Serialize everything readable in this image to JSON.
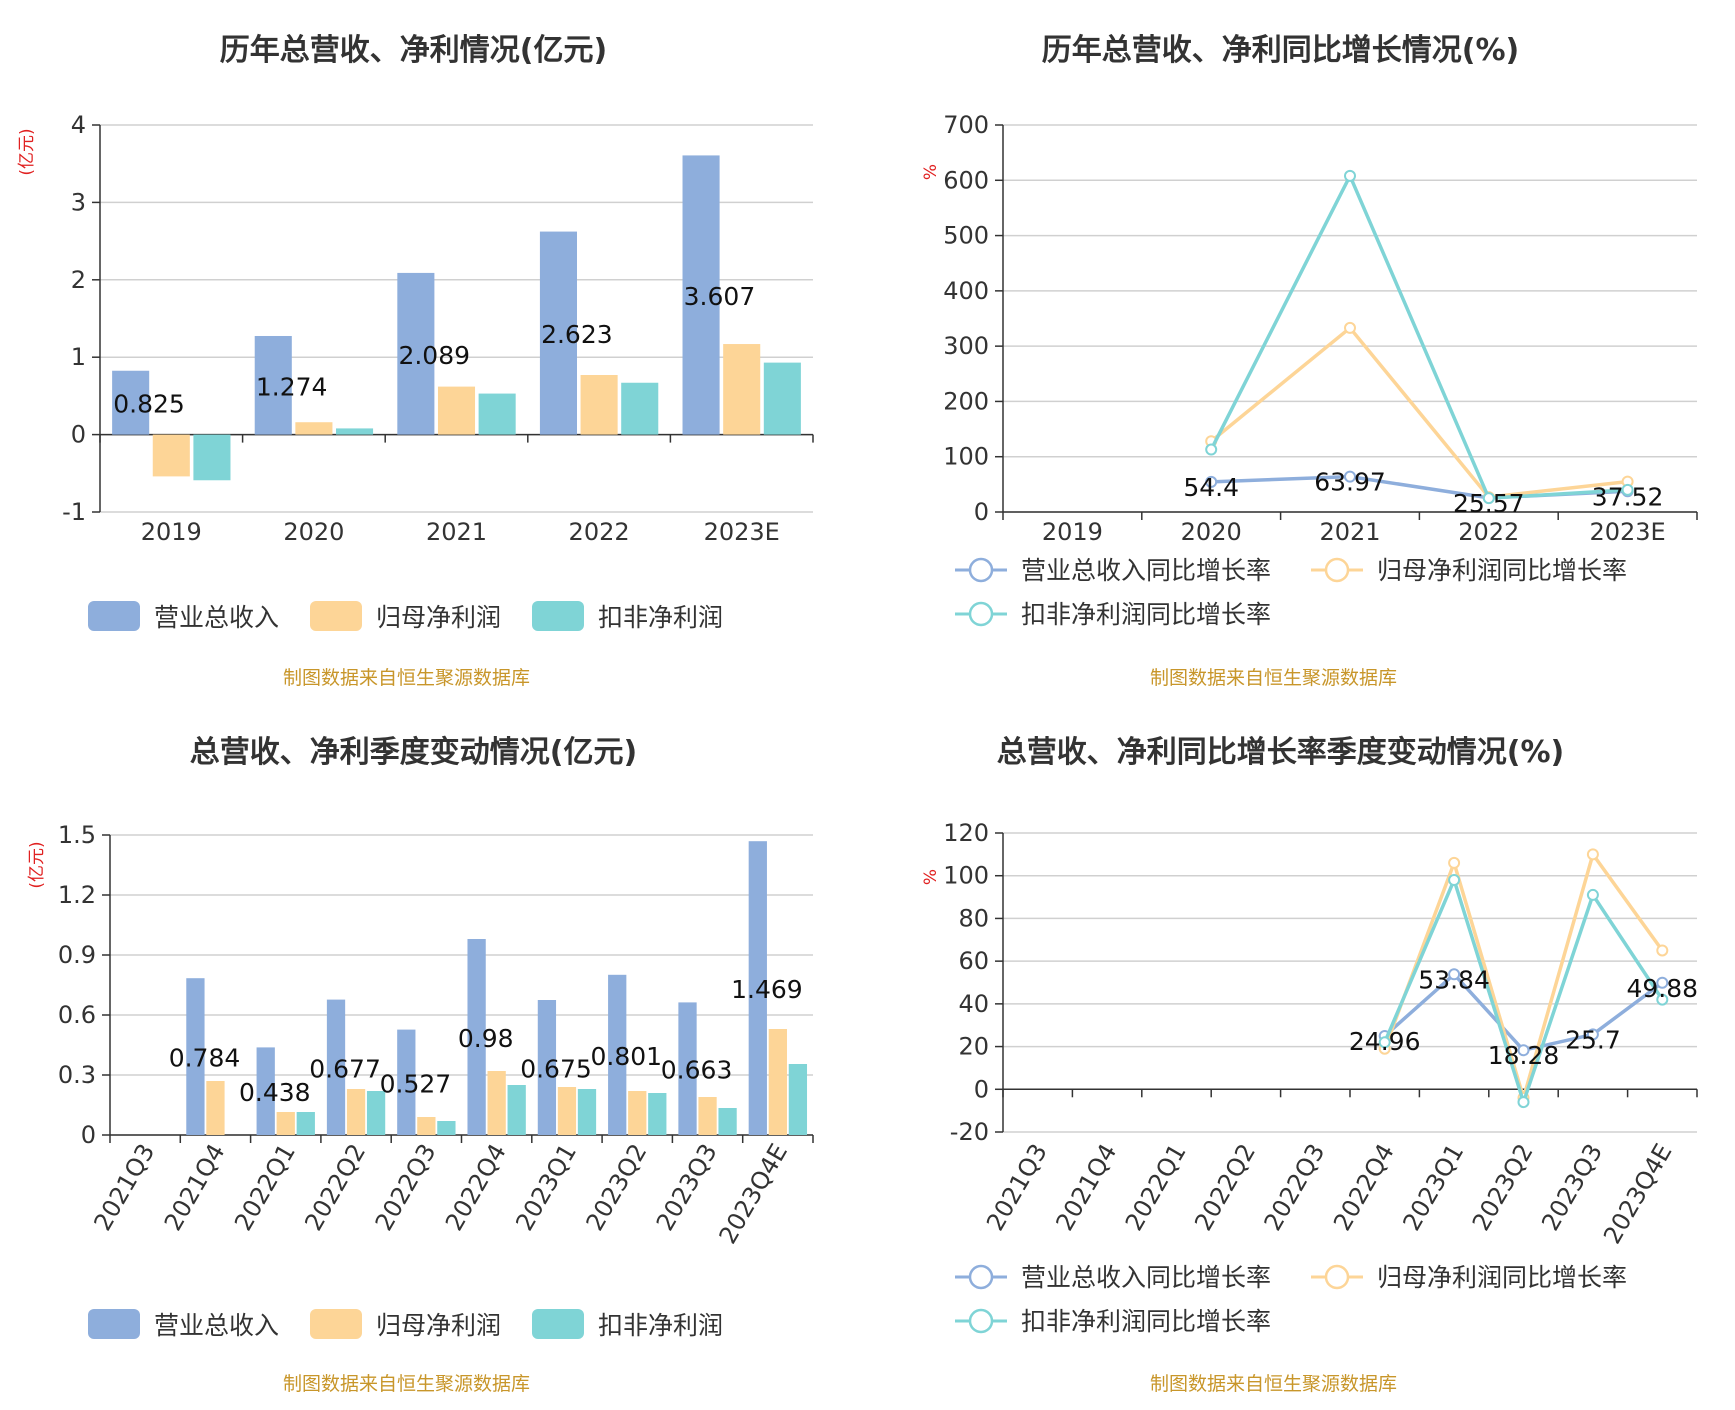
{
  "colors": {
    "revenue": "#8eaedc",
    "net_profit": "#fdd597",
    "deducted_profit": "#7fd4d6",
    "grid": "#d0d0d0",
    "axis": "#333333",
    "source": "#c8962a",
    "unit": "#e02020"
  },
  "chart_data": [
    {
      "type": "bar",
      "title": "历年总营收、净利情况(亿元)",
      "unit": "(亿元)",
      "categories": [
        "2019",
        "2020",
        "2021",
        "2022",
        "2023E"
      ],
      "ylim": [
        -1,
        4
      ],
      "yticks": [
        "-1",
        "0",
        "1",
        "2",
        "3",
        "4"
      ],
      "series": [
        {
          "name": "营业总收入",
          "values": [
            0.825,
            1.274,
            2.089,
            2.623,
            3.607
          ],
          "labels": [
            "0.825",
            "1.274",
            "2.089",
            "2.623",
            "3.607"
          ]
        },
        {
          "name": "归母净利润",
          "values": [
            -0.54,
            0.16,
            0.62,
            0.77,
            1.17
          ]
        },
        {
          "name": "扣非净利润",
          "values": [
            -0.59,
            0.08,
            0.53,
            0.67,
            0.93
          ]
        }
      ],
      "grid": true,
      "legend": "bottom",
      "source": "制图数据来自恒生聚源数据库"
    },
    {
      "type": "line",
      "title": "历年总营收、净利同比增长情况(%)",
      "unit": "%",
      "categories": [
        "2019",
        "2020",
        "2021",
        "2022",
        "2023E"
      ],
      "ylim": [
        0,
        700
      ],
      "yticks": [
        "0",
        "100",
        "200",
        "300",
        "400",
        "500",
        "600",
        "700"
      ],
      "series": [
        {
          "name": "营业总收入同比增长率",
          "values": [
            null,
            54.4,
            63.97,
            25.57,
            37.52
          ],
          "labels": [
            null,
            "54.4",
            "63.97",
            "25.57",
            "37.52"
          ]
        },
        {
          "name": "归母净利润同比增长率",
          "values": [
            null,
            128,
            333,
            27,
            55
          ]
        },
        {
          "name": "扣非净利润同比增长率",
          "values": [
            null,
            113,
            608,
            25,
            40
          ]
        }
      ],
      "grid": true,
      "legend": "bottom",
      "source": "制图数据来自恒生聚源数据库"
    },
    {
      "type": "bar",
      "title": "总营收、净利季度变动情况(亿元)",
      "unit": "(亿元)",
      "categories": [
        "2021Q3",
        "2021Q4",
        "2022Q1",
        "2022Q2",
        "2022Q3",
        "2022Q4",
        "2023Q1",
        "2023Q2",
        "2023Q3",
        "2023Q4E"
      ],
      "ylim": [
        0,
        1.5
      ],
      "yticks": [
        "0",
        "0.3",
        "0.6",
        "0.9",
        "1.2",
        "1.5"
      ],
      "series": [
        {
          "name": "营业总收入",
          "values": [
            null,
            0.784,
            0.438,
            0.677,
            0.527,
            0.98,
            0.675,
            0.801,
            0.663,
            1.469
          ],
          "labels": [
            null,
            "0.784",
            "0.438",
            "0.677",
            "0.527",
            "0.98",
            "0.675",
            "0.801",
            "0.663",
            "1.469"
          ]
        },
        {
          "name": "归母净利润",
          "values": [
            null,
            0.27,
            0.115,
            0.23,
            0.09,
            0.32,
            0.24,
            0.22,
            0.19,
            0.53
          ]
        },
        {
          "name": "扣非净利润",
          "values": [
            null,
            null,
            0.115,
            0.22,
            0.07,
            0.25,
            0.23,
            0.21,
            0.135,
            0.355
          ]
        }
      ],
      "grid": true,
      "legend": "bottom",
      "source": "制图数据来自恒生聚源数据库"
    },
    {
      "type": "line",
      "title": "总营收、净利同比增长率季度变动情况(%)",
      "unit": "%",
      "categories": [
        "2021Q3",
        "2021Q4",
        "2022Q1",
        "2022Q2",
        "2022Q3",
        "2022Q4",
        "2023Q1",
        "2023Q2",
        "2023Q3",
        "2023Q4E"
      ],
      "ylim": [
        -20,
        120
      ],
      "yticks": [
        "-20",
        "0",
        "20",
        "40",
        "60",
        "80",
        "100",
        "120"
      ],
      "series": [
        {
          "name": "营业总收入同比增长率",
          "values": [
            null,
            null,
            null,
            null,
            null,
            24.96,
            53.84,
            18.28,
            25.7,
            49.88
          ],
          "labels": [
            null,
            null,
            null,
            null,
            null,
            "24.96",
            "53.84",
            "18.28",
            "25.7",
            "49.88"
          ]
        },
        {
          "name": "归母净利润同比增长率",
          "values": [
            null,
            null,
            null,
            null,
            null,
            19,
            106,
            -4,
            110,
            65
          ]
        },
        {
          "name": "扣非净利润同比增长率",
          "values": [
            null,
            null,
            null,
            null,
            null,
            22,
            98,
            -6,
            91,
            42
          ]
        }
      ],
      "grid": true,
      "legend": "bottom",
      "source": "制图数据来自恒生聚源数据库"
    }
  ]
}
